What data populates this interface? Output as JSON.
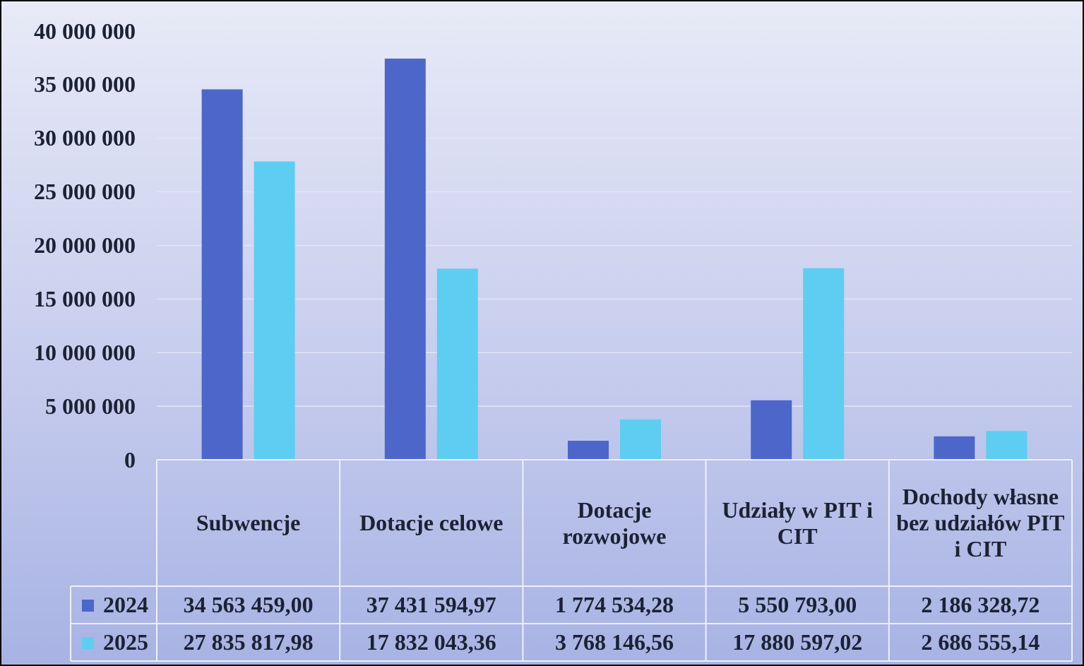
{
  "chart_data": {
    "type": "bar",
    "categories": [
      "Subwencje",
      "Dotacje celowe",
      "Dotacje rozwojowe",
      "Udziały w PIT i CIT",
      "Dochody własne bez udziałów PIT i CIT"
    ],
    "series": [
      {
        "name": "2024",
        "color": "#4d66c9",
        "values": [
          34563459.0,
          37431594.97,
          1774534.28,
          5550793.0,
          2186328.72
        ],
        "value_labels": [
          "34 563 459,00",
          "37 431 594,97",
          "1 774 534,28",
          "5 550 793,00",
          "2 186 328,72"
        ]
      },
      {
        "name": "2025",
        "color": "#5ecdf2",
        "values": [
          27835817.98,
          17832043.36,
          3768146.56,
          17880597.02,
          2686555.14
        ],
        "value_labels": [
          "27 835 817,98",
          "17 832 043,36",
          "3 768 146,56",
          "17 880 597,02",
          "2 686 555,14"
        ]
      }
    ],
    "ylim": [
      0,
      40000000
    ],
    "yticks": [
      0,
      {
        "value": 5000000,
        "label": "5 000 000"
      },
      {
        "value": 10000000,
        "label": "10 000 000"
      },
      {
        "value": 15000000,
        "label": "15 000 000"
      },
      {
        "value": 20000000,
        "label": "20 000 000"
      },
      {
        "value": 25000000,
        "label": "25 000 000"
      },
      {
        "value": 30000000,
        "label": "30 000 000"
      },
      {
        "value": 35000000,
        "label": "35 000 000"
      },
      {
        "value": 40000000,
        "label": "40 000 000"
      }
    ],
    "grid": true,
    "data_table": true
  }
}
